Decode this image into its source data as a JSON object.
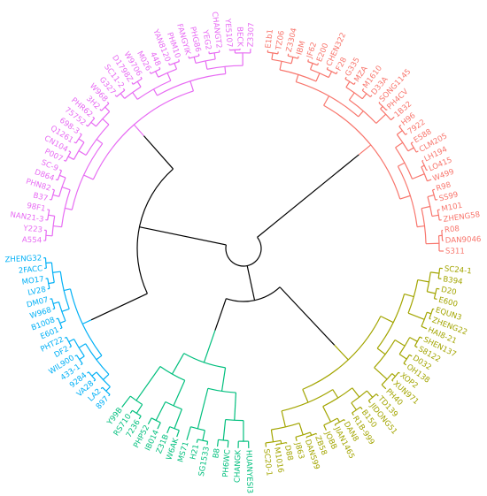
{
  "tree": {
    "clusters": [
      {
        "id": "red",
        "color": "#F8766D",
        "labels": [
          "E1b1",
          "TZ06",
          "Z3304",
          "IBM",
          "JF62",
          "E200",
          "CHEN322",
          "F28",
          "G335",
          "MZA",
          "M1610",
          "D33A",
          "SONG1145",
          "PH4CV",
          "1B32",
          "H96",
          "7922",
          "E588",
          "CLM205",
          "LH194",
          "LO415",
          "W499",
          "R98",
          "SS99",
          "M101",
          "ZHENG58",
          "R08",
          "DAN9046",
          "S311"
        ]
      },
      {
        "id": "olive",
        "color": "#A3A500",
        "labels": [
          "SC24-1",
          "B394",
          "D20",
          "E600",
          "EQUN3",
          "ZHENG22",
          "HAI8-21",
          "SHEN137",
          "S8122",
          "D032",
          "OH138",
          "XOP2",
          "XUN971",
          "PH40",
          "TD139",
          "JIDONG51",
          "B150",
          "R1B-999",
          "DAN8",
          "JIAN1465",
          "JOBB",
          "ZB58",
          "DAN599",
          "J863",
          "D88",
          "M1016",
          "SC20-1"
        ]
      },
      {
        "id": "teal",
        "color": "#00BF7D",
        "labels": [
          "HUANYESI3",
          "CHANGK",
          "PH6WC",
          "B8",
          "SG1533",
          "H21",
          "MS71",
          "W6AK",
          "Z31B",
          "IB014",
          "PHP52",
          "7236",
          "RS710",
          "Y99B"
        ]
      },
      {
        "id": "blue",
        "color": "#00B0F6",
        "labels": [
          "897",
          "LA2",
          "VA28",
          "9284",
          "433-1",
          "WIL900",
          "DF2",
          "PHT22",
          "E601",
          "B1008",
          "W968",
          "DM07",
          "LV28",
          "MO17",
          "2FACC",
          "ZHENG32"
        ]
      },
      {
        "id": "magenta",
        "color": "#E76BF3",
        "labels": [
          "A554",
          "Y223",
          "NAN21-3",
          "98F1",
          "B37",
          "PHN82",
          "D864",
          "SC-9",
          "P007",
          "CN104",
          "Q1261",
          "698-3",
          "75752",
          "PHR62",
          "3H2",
          "W968",
          "G327",
          "SC11-2",
          "D1798Z",
          "W9706",
          "M026",
          "448",
          "YAN8120",
          "PHM10",
          "FANGYIK",
          "PHG86",
          "YEG2",
          "CHANGT2",
          "YE5107",
          "BECK",
          "Z3307"
        ]
      }
    ]
  }
}
